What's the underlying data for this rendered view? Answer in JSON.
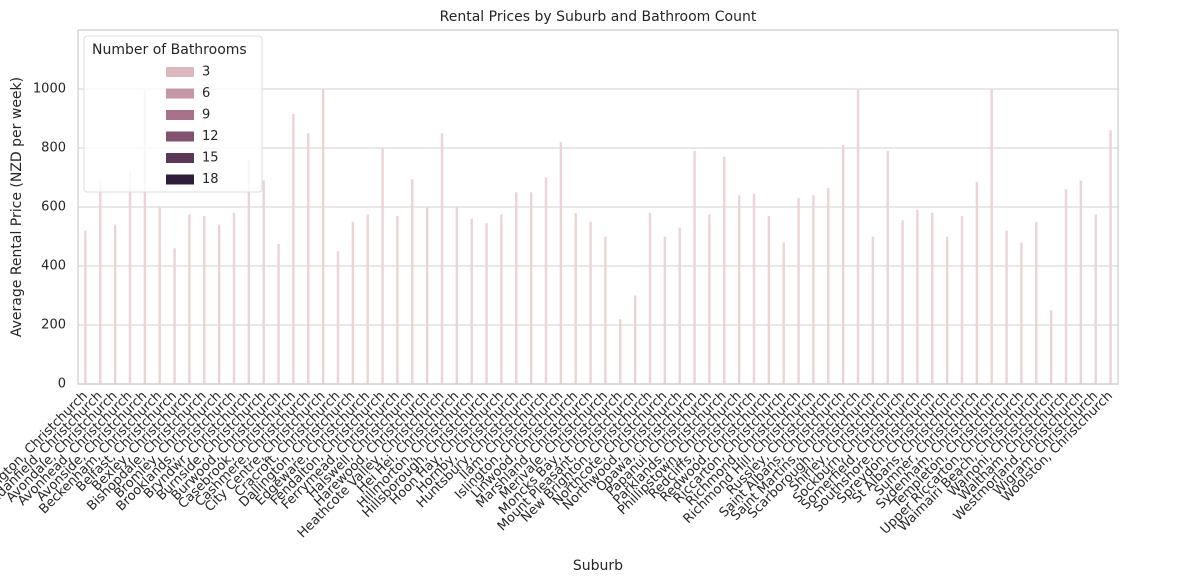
{
  "chart_data": {
    "type": "bar",
    "title": "Rental Prices by Suburb and Bathroom Count",
    "x_label": "Suburb",
    "y_label": "Average Rental Price (NZD per week)",
    "categories": [
      "Addington, Christchurch",
      "Aidanfield, Christchurch",
      "Avondale, Christchurch",
      "Avonhead, Christchurch",
      "Avonside, Christchurch",
      "Beckenham, Christchurch",
      "Belfast, Christchurch",
      "Bexley, Christchurch",
      "Bishopdale, Christchurch",
      "Bromley, Christchurch",
      "Brooklands, Christchurch",
      "Bryndwr, Christchurch",
      "Burnside, Christchurch",
      "Burwood, Christchurch",
      "Casebrook, Christchurch",
      "Cashmere, Christchurch",
      "City Centre, Christchurch",
      "Cracroft, Christchurch",
      "Dallington, Christchurch",
      "Edgeware, Christchurch",
      "Fendalton, Christchurch",
      "Ferrymead, Christchurch",
      "Halswell, Christchurch",
      "Harewood, Christchurch",
      "Heathcote Valley, Christchurch",
      "Hei Hei, Christchurch",
      "Hillmorton, Christchurch",
      "Hillsborough, Christchurch",
      "Hoon Hay, Christchurch",
      "Hornby, Christchurch",
      "Huntsbury, Christchurch",
      "Ilam, Christchurch",
      "Islington, Christchurch",
      "Linwood, Christchurch",
      "Marshland, Christchurch",
      "Merivale, Christchurch",
      "Moncks Bay, Christchurch",
      "Mount Pleasant, Christchurch",
      "New Brighton, Christchurch",
      "Northcote, Christchurch",
      "Northwood, Christchurch",
      "Opawa, Christchurch",
      "Papanui, Christchurch",
      "Parklands, Christchurch",
      "Phillipstown, Christchurch",
      "Redcliffs, Christchurch",
      "Redwood, Christchurch",
      "Riccarton, Christchurch",
      "Richmond, Christchurch",
      "Richmond Hill, Christchurch",
      "Russley, Christchurch",
      "Saint Albans, Christchurch",
      "Saint Martins, Christchurch",
      "Scarborough, Christchurch",
      "Shirley, Christchurch",
      "Sockburn, Christchurch",
      "Somerfield, Christchurch",
      "Southshore, Christchurch",
      "Spreydon, Christchurch",
      "St Albans, Christchurch",
      "Sumner, Christchurch",
      "Sydenham, Christchurch",
      "Templeton, Christchurch",
      "Upper Riccarton, Christchurch",
      "Waimairi Beach, Christchurch",
      "Wainoni, Christchurch",
      "Waltham, Christchurch",
      "Westmorland, Christchurch",
      "Wigram, Christchurch",
      "Woolston, Christchurch"
    ],
    "values": [
      520,
      690,
      540,
      720,
      1000,
      600,
      460,
      575,
      570,
      540,
      580,
      760,
      690,
      475,
      915,
      850,
      1000,
      450,
      550,
      575,
      800,
      570,
      695,
      600,
      850,
      600,
      560,
      545,
      575,
      650,
      650,
      700,
      820,
      580,
      550,
      500,
      220,
      300,
      580,
      500,
      530,
      790,
      575,
      770,
      640,
      645,
      570,
      480,
      630,
      640,
      665,
      810,
      1000,
      500,
      790,
      555,
      590,
      580,
      500,
      570,
      685,
      1000,
      520,
      480,
      550,
      250,
      660,
      690,
      575,
      860
    ],
    "color": "#ecd3d6",
    "ylim": [
      0,
      1200
    ],
    "yticks": [
      0,
      200,
      400,
      600,
      800,
      1000
    ],
    "grid": true,
    "legend": {
      "title": "Number of Bathrooms",
      "position": "upper left",
      "entries": [
        {
          "name": "3",
          "color": "#dcb7bd"
        },
        {
          "name": "6",
          "color": "#c596a6"
        },
        {
          "name": "9",
          "color": "#a8728d"
        },
        {
          "name": "12",
          "color": "#82526f"
        },
        {
          "name": "15",
          "color": "#5c3757"
        },
        {
          "name": "18",
          "color": "#2e1e3b"
        }
      ]
    }
  }
}
